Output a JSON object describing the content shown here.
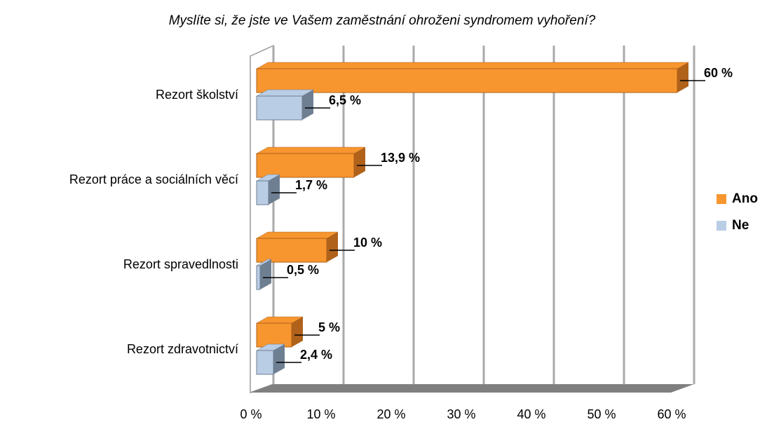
{
  "chart_data": {
    "type": "bar3d",
    "orientation": "horizontal",
    "title": "Myslíte si, že jste ve Vašem zaměstnání ohroženi syndromem vyhoření?",
    "categories": [
      "Rezort školství",
      "Rezort práce a sociálních věcí",
      "Rezort spravedlnosti",
      "Rezort zdravotnictví"
    ],
    "series": [
      {
        "name": "Ano",
        "color": "#f7962f",
        "side": "#b0611a",
        "values": [
          60,
          13.9,
          10,
          5
        ],
        "value_labels": [
          "60 %",
          "13,9 %",
          "10 %",
          "5 %"
        ]
      },
      {
        "name": "Ne",
        "color": "#b9cde5",
        "side": "#6f7f92",
        "values": [
          6.5,
          1.7,
          0.5,
          2.4
        ],
        "value_labels": [
          "6,5 %",
          "1,7 %",
          "0,5 %",
          "2,4 %"
        ]
      }
    ],
    "xlim": [
      0,
      60
    ],
    "xticks": [
      {
        "value": 0,
        "label": "0 %"
      },
      {
        "value": 10,
        "label": "10 %"
      },
      {
        "value": 20,
        "label": "20 %"
      },
      {
        "value": 30,
        "label": "30 %"
      },
      {
        "value": 40,
        "label": "40 %"
      },
      {
        "value": 50,
        "label": "50 %"
      },
      {
        "value": 60,
        "label": "60 %"
      }
    ],
    "grid": true,
    "legend": "right"
  }
}
